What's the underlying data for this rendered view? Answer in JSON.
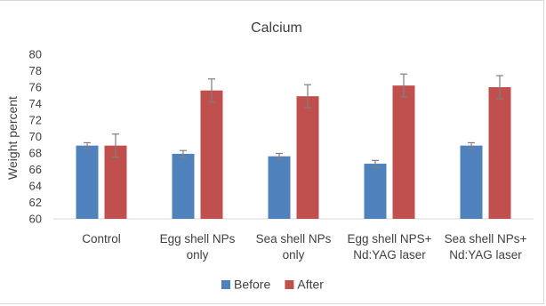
{
  "chart_data": {
    "type": "bar",
    "title": "Calcium",
    "xlabel": "",
    "ylabel": "Weight percent",
    "ylim": [
      60,
      80
    ],
    "ytick_step": 2,
    "grid": false,
    "legend_position": "bottom",
    "categories": [
      [
        "Control"
      ],
      [
        "Egg shell  NPs",
        "only"
      ],
      [
        "Sea shell  NPs",
        "only"
      ],
      [
        "Egg shell NPS+",
        "Nd:YAG laser"
      ],
      [
        "Sea shell NPs+",
        "Nd:YAG laser"
      ]
    ],
    "series": [
      {
        "name": "Before",
        "color": "#4f81bd",
        "values": [
          68.9,
          67.9,
          67.6,
          66.7,
          68.9
        ],
        "errors": [
          0.35,
          0.4,
          0.35,
          0.4,
          0.35
        ]
      },
      {
        "name": "After",
        "color": "#c0504d",
        "values": [
          68.9,
          75.6,
          74.9,
          76.2,
          76.0
        ],
        "errors": [
          1.4,
          1.4,
          1.4,
          1.4,
          1.4
        ]
      }
    ]
  }
}
